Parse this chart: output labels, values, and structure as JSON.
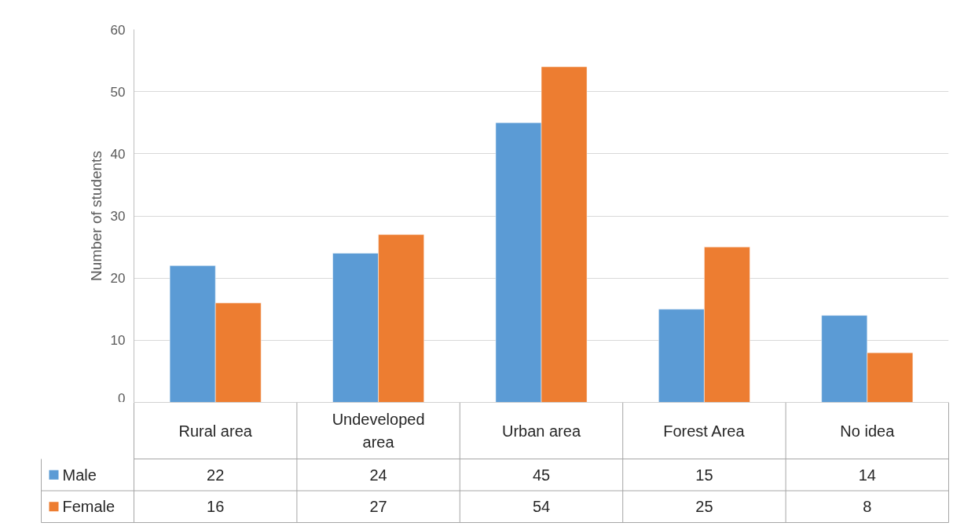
{
  "chart_data": {
    "type": "bar",
    "ylabel": "Number of students",
    "categories": [
      "Rural area",
      "Undeveloped area",
      "Urban area",
      "Forest Area",
      "No idea"
    ],
    "series": [
      {
        "name": "Male",
        "color": "#5b9bd5",
        "values": [
          22,
          24,
          45,
          15,
          14
        ]
      },
      {
        "name": "Female",
        "color": "#ed7d31",
        "values": [
          16,
          27,
          54,
          25,
          8
        ]
      }
    ],
    "ylim": [
      0,
      60
    ],
    "yticks": [
      0,
      10,
      20,
      30,
      40,
      50,
      60
    ],
    "grid": "y",
    "legend": "bottom",
    "data_labels": true
  }
}
